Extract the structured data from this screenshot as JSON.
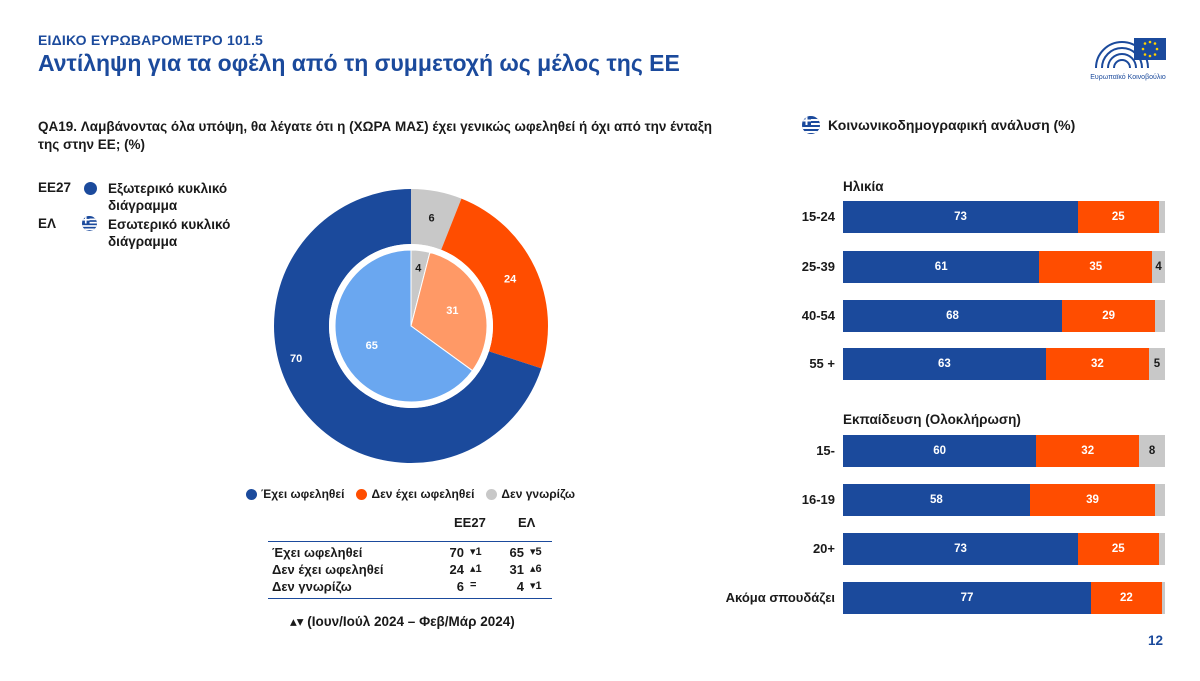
{
  "header": {
    "kicker": "ΕΙΔΙΚΟ ΕΥΡΩΒΑΡΟΜΕΤΡΟ 101.5",
    "title": "Αντίληψη για τα οφέλη από τη συμμετοχή ως μέλος της ΕΕ",
    "logo_text": "Ευρωπαϊκό Κοινοβούλιο"
  },
  "question": "QA19. Λαμβάνοντας όλα υπόψη, θα λέγατε ότι η (ΧΩΡΑ ΜΑΣ) έχει γενικώς ωφεληθεί ή όχι από την ένταξη της στην ΕΕ; (%)",
  "legend_top": [
    {
      "code": "ΕΕ27",
      "text": "Εξωτερικό κυκλικό διάγραμμα",
      "icon": "eu-dot-icon"
    },
    {
      "code": "ΕΛ",
      "text": "Εσωτερικό κυκλικό διάγραμμα",
      "icon": "greek-flag-icon"
    }
  ],
  "legend_bottom": [
    "Έχει ωφεληθεί",
    "Δεν έχει ωφεληθεί",
    "Δεν γνωρίζω"
  ],
  "colors": {
    "benefited": "#1b4a9c",
    "not_benefited": "#ff4d00",
    "dont_know": "#c8c8c8",
    "inner_benefited": "#6aa7f0",
    "inner_not_benefited": "#ff9966",
    "inner_dont_know": "#c8c8c8",
    "accent": "#1b4a9c"
  },
  "summary_table": {
    "headers": [
      "ΕΕ27",
      "ΕΛ"
    ],
    "rows": [
      {
        "label": "Έχει ωφεληθεί",
        "eu": "70",
        "eu_trend": "▾1",
        "el": "65",
        "el_trend": "▾5"
      },
      {
        "label": "Δεν έχει ωφεληθεί",
        "eu": "24",
        "eu_trend": "▴1",
        "el": "31",
        "el_trend": "▴6"
      },
      {
        "label": "Δεν γνωρίζω",
        "eu": "6",
        "eu_trend": "=",
        "el": "4",
        "el_trend": "▾1"
      }
    ],
    "trend_note": "▴▾ (Ιουν/Ιούλ 2024 – Φεβ/Μάρ 2024)"
  },
  "socio_title": "Κοινωνικοδημογραφική ανάλυση (%)",
  "sections": [
    {
      "title": "Ηλικία",
      "rows": [
        "15-24",
        "25-39",
        "40-54",
        "55 +"
      ]
    },
    {
      "title": "Εκπαίδευση (Ολοκλήρωση)",
      "rows": [
        "15-",
        "16-19",
        "20+",
        "Ακόμα σπουδάζει"
      ]
    }
  ],
  "page_number": "12",
  "chart_data": [
    {
      "type": "pie",
      "variant": "donut",
      "ring": "outer",
      "series_key": "ΕΕ27",
      "categories": [
        "Έχει ωφεληθεί",
        "Δεν έχει ωφεληθεί",
        "Δεν γνωρίζω"
      ],
      "values": [
        70,
        24,
        6
      ]
    },
    {
      "type": "pie",
      "ring": "inner",
      "series_key": "ΕΛ",
      "categories": [
        "Έχει ωφεληθεί",
        "Δεν έχει ωφεληθεί",
        "Δεν γνωρίζω"
      ],
      "values": [
        65,
        31,
        4
      ]
    },
    {
      "type": "bar",
      "orientation": "horizontal",
      "stacked": true,
      "categories": [
        "15-24",
        "25-39",
        "40-54",
        "55 +",
        "15-",
        "16-19",
        "20+",
        "Ακόμα σπουδάζει"
      ],
      "series": [
        {
          "name": "Έχει ωφεληθεί",
          "values": [
            73,
            61,
            68,
            63,
            60,
            58,
            73,
            77
          ]
        },
        {
          "name": "Δεν έχει ωφεληθεί",
          "values": [
            25,
            35,
            29,
            32,
            32,
            39,
            25,
            22
          ]
        },
        {
          "name": "Δεν γνωρίζω",
          "values": [
            2,
            4,
            3,
            5,
            8,
            3,
            2,
            1
          ]
        }
      ],
      "xlim": [
        0,
        100
      ]
    }
  ]
}
